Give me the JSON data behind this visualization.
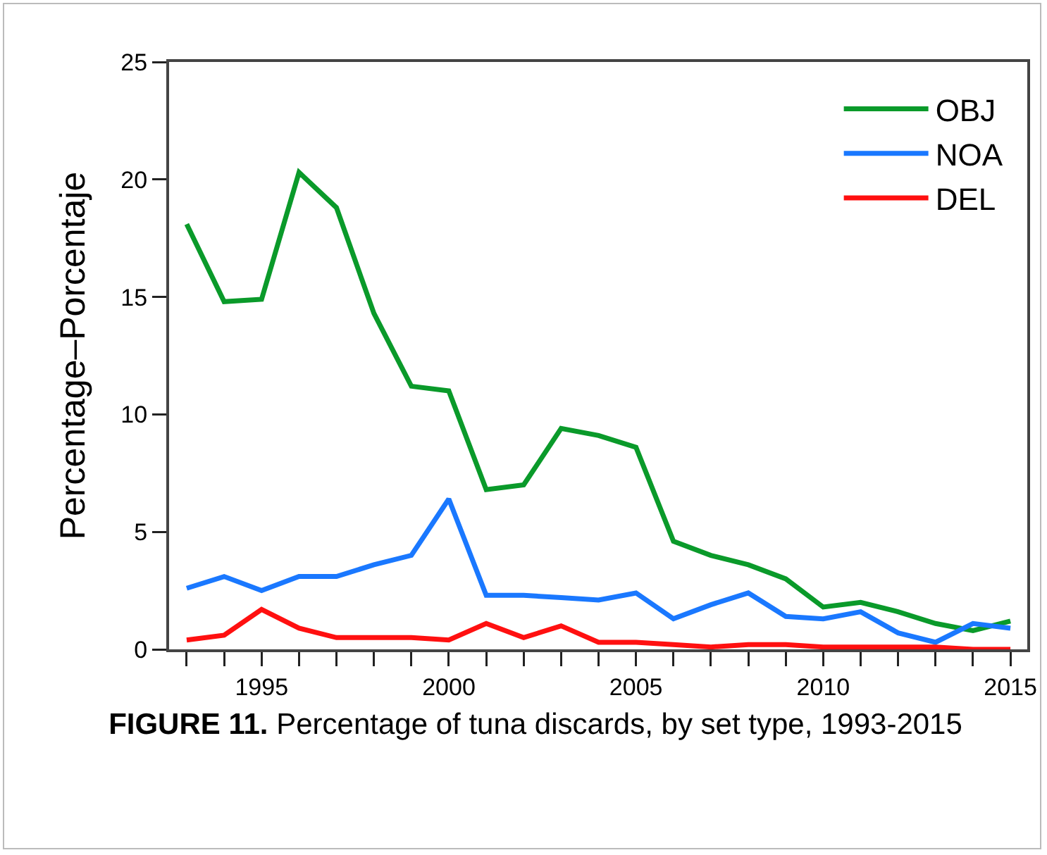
{
  "chart_data": {
    "type": "line",
    "ylabel": "Percentage–Porcentaje",
    "annotations": [
      "FIGURE 11. Percentage of tuna discards, by set type, 1993-2015"
    ],
    "x": [
      1993,
      1994,
      1995,
      1996,
      1997,
      1998,
      1999,
      2000,
      2001,
      2002,
      2003,
      2004,
      2005,
      2006,
      2007,
      2008,
      2009,
      2010,
      2011,
      2012,
      2013,
      2014,
      2015
    ],
    "series": [
      {
        "name": "OBJ",
        "color": "#0a9a2a",
        "values": [
          18.1,
          14.8,
          14.9,
          20.3,
          18.8,
          14.3,
          11.2,
          11.0,
          6.8,
          7.0,
          9.4,
          9.1,
          8.6,
          4.6,
          4.0,
          3.6,
          3.0,
          1.8,
          2.0,
          1.6,
          1.1,
          0.8,
          1.2
        ]
      },
      {
        "name": "NOA",
        "color": "#1a78ff",
        "values": [
          2.6,
          3.1,
          2.5,
          3.1,
          3.1,
          3.6,
          4.0,
          6.4,
          2.3,
          2.3,
          2.2,
          2.1,
          2.4,
          1.3,
          1.9,
          2.4,
          1.4,
          1.3,
          1.6,
          0.7,
          0.3,
          1.1,
          0.9
        ]
      },
      {
        "name": "DEL",
        "color": "#ff1010",
        "values": [
          0.4,
          0.6,
          1.7,
          0.9,
          0.5,
          0.5,
          0.5,
          0.4,
          1.1,
          0.5,
          1.0,
          0.3,
          0.3,
          0.2,
          0.1,
          0.2,
          0.2,
          0.1,
          0.1,
          0.1,
          0.1,
          0.0,
          0.0
        ]
      }
    ],
    "xlim": [
      1992.53,
      2015.45
    ],
    "xticks": [
      {
        "value": 1993,
        "label": null
      },
      {
        "value": 1994,
        "label": null
      },
      1995,
      {
        "value": 1996,
        "label": null
      },
      {
        "value": 1997,
        "label": null
      },
      {
        "value": 1998,
        "label": null
      },
      {
        "value": 1999,
        "label": null
      },
      2000,
      {
        "value": 2001,
        "label": null
      },
      {
        "value": 2002,
        "label": null
      },
      {
        "value": 2003,
        "label": null
      },
      {
        "value": 2004,
        "label": null
      },
      2005,
      {
        "value": 2006,
        "label": null
      },
      {
        "value": 2007,
        "label": null
      },
      {
        "value": 2008,
        "label": null
      },
      {
        "value": 2009,
        "label": null
      },
      2010,
      {
        "value": 2011,
        "label": null
      },
      {
        "value": 2012,
        "label": null
      },
      {
        "value": 2013,
        "label": null
      },
      {
        "value": 2014,
        "label": null
      },
      2015
    ],
    "ylim": [
      0,
      25
    ],
    "yticks": [
      0,
      5,
      10,
      15,
      20,
      25
    ],
    "grid": false,
    "legend": "top right",
    "marker": "none",
    "line_style": "solid"
  }
}
